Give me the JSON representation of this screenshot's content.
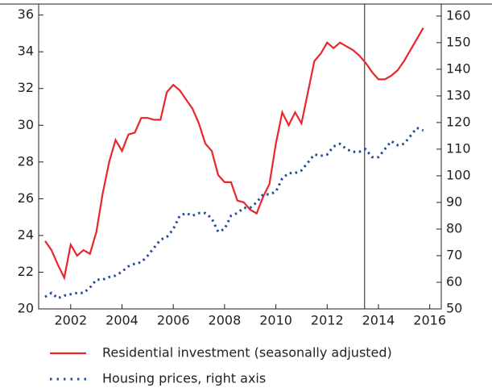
{
  "chart_data": {
    "type": "line",
    "x": [
      2001,
      2001.25,
      2001.5,
      2001.75,
      2002,
      2002.25,
      2002.5,
      2002.75,
      2003,
      2003.25,
      2003.5,
      2003.75,
      2004,
      2004.25,
      2004.5,
      2004.75,
      2005,
      2005.25,
      2005.5,
      2005.75,
      2006,
      2006.25,
      2006.5,
      2006.75,
      2007,
      2007.25,
      2007.5,
      2007.75,
      2008,
      2008.25,
      2008.5,
      2008.75,
      2009,
      2009.25,
      2009.5,
      2009.75,
      2010,
      2010.25,
      2010.5,
      2010.75,
      2011,
      2011.25,
      2011.5,
      2011.75,
      2012,
      2012.25,
      2012.5,
      2012.75,
      2013,
      2013.25,
      2013.5,
      2013.75,
      2014,
      2014.25,
      2014.5,
      2014.75,
      2015,
      2015.25,
      2015.5,
      2015.75
    ],
    "series": [
      {
        "name": "Residential investment (seasonally adjusted)",
        "color": "#e8262b",
        "style": "solid",
        "values": [
          23.7,
          23.2,
          22.4,
          21.7,
          23.5,
          22.9,
          23.2,
          23.0,
          24.2,
          26.3,
          28.0,
          29.2,
          28.6,
          29.5,
          29.6,
          30.4,
          30.4,
          30.3,
          30.3,
          31.8,
          32.2,
          31.9,
          31.4,
          30.9,
          30.1,
          29.0,
          28.6,
          27.3,
          26.9,
          26.9,
          25.9,
          25.8,
          25.4,
          25.2,
          26.1,
          26.8,
          29.0,
          30.7,
          30.0,
          30.7,
          30.1,
          31.8,
          33.5,
          33.9,
          34.5,
          34.2,
          34.5,
          34.3,
          34.1,
          33.8,
          33.4,
          32.9,
          32.5,
          32.5,
          32.7,
          33.0,
          33.5,
          34.1,
          34.7,
          35.3
        ]
      },
      {
        "name": "Housing prices, right axis",
        "color": "#1f4e9c",
        "style": "dotted",
        "axis": "y2",
        "values": [
          54.5,
          56,
          54,
          55,
          55.5,
          56,
          56,
          58,
          61,
          61,
          62,
          62.5,
          64,
          66,
          67,
          67.5,
          70,
          73,
          76,
          77,
          80,
          85,
          86,
          85,
          86,
          86,
          84,
          79,
          80,
          85,
          86,
          88,
          88,
          90,
          93,
          93,
          94,
          99,
          101,
          101,
          102,
          105,
          108,
          107.5,
          108,
          111,
          112,
          110,
          109,
          109,
          110,
          107,
          107,
          110,
          113,
          111.5,
          112,
          115,
          118,
          117
        ]
      }
    ],
    "xlim": [
      2000.75,
      2016.45
    ],
    "xticks": [
      2002,
      2004,
      2006,
      2008,
      2010,
      2012,
      2014,
      2016
    ],
    "ylim": [
      20,
      36.6
    ],
    "yticks": [
      20,
      22,
      24,
      26,
      28,
      30,
      32,
      34,
      36
    ],
    "y2lim": [
      50,
      164.5
    ],
    "y2ticks": [
      50,
      60,
      70,
      80,
      90,
      100,
      110,
      120,
      130,
      140,
      150,
      160
    ],
    "vline": 2013.46,
    "legend": "bottom-left"
  }
}
